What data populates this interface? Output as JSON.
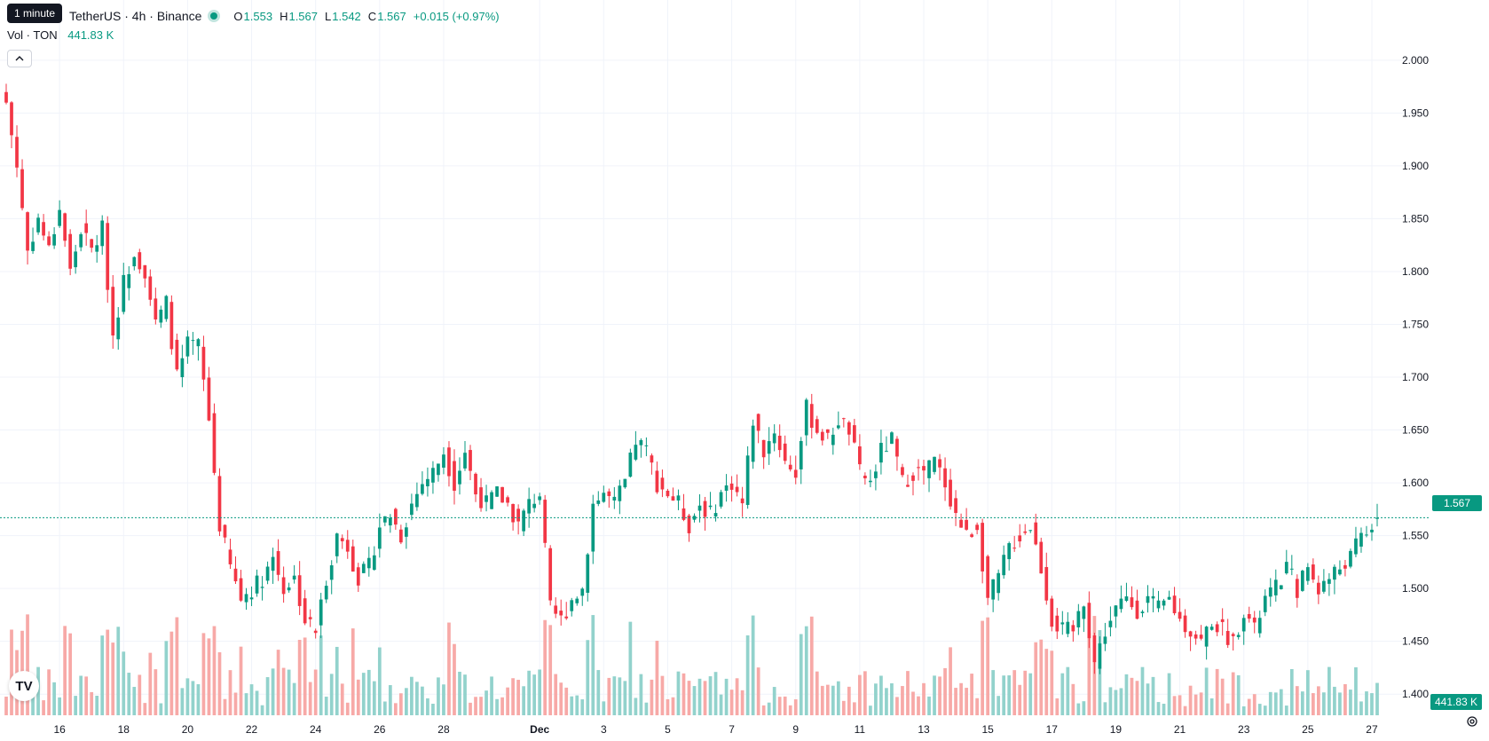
{
  "legend": {
    "tooltip": "1 minute",
    "symbol": "TetherUS · 4h · Binance",
    "open_key": "O",
    "open": "1.553",
    "high_key": "H",
    "high": "1.567",
    "low_key": "L",
    "low": "1.542",
    "close_key": "C",
    "close": "1.567",
    "change": "+0.015 (+0.97%)"
  },
  "volume_legend": {
    "label": "Vol · TON",
    "value": "441.83 K"
  },
  "price_axis_tags": {
    "last_price": "1.567",
    "last_volume": "441.83 K"
  },
  "icons": {
    "collapse": "chevron-up-icon",
    "logo": "tradingview-logo-icon",
    "settings": "settings-icon",
    "logo_text": "TV"
  },
  "colors": {
    "up": "#089981",
    "down": "#F23645",
    "up_vol": "#92d2cc",
    "down_vol": "#f7a9a7"
  },
  "chart_data": {
    "type": "candlestick",
    "interval": "4h",
    "ylim": [
      1.38,
      2.02
    ],
    "price_ticks": [
      "2.000",
      "1.950",
      "1.900",
      "1.850",
      "1.800",
      "1.750",
      "1.700",
      "1.650",
      "1.600",
      "1.550",
      "1.500",
      "1.450",
      "1.400"
    ],
    "x_ticks": [
      {
        "label": "16",
        "bar": 10
      },
      {
        "label": "18",
        "bar": 22
      },
      {
        "label": "20",
        "bar": 34
      },
      {
        "label": "22",
        "bar": 46
      },
      {
        "label": "24",
        "bar": 58
      },
      {
        "label": "26",
        "bar": 70
      },
      {
        "label": "28",
        "bar": 82
      },
      {
        "label": "Dec",
        "bar": 100
      },
      {
        "label": "3",
        "bar": 112
      },
      {
        "label": "5",
        "bar": 124
      },
      {
        "label": "7",
        "bar": 136
      },
      {
        "label": "9",
        "bar": 148
      },
      {
        "label": "11",
        "bar": 160
      },
      {
        "label": "13",
        "bar": 172
      },
      {
        "label": "15",
        "bar": 184
      },
      {
        "label": "17",
        "bar": 196
      },
      {
        "label": "19",
        "bar": 208
      },
      {
        "label": "21",
        "bar": 220
      },
      {
        "label": "23",
        "bar": 232
      },
      {
        "label": "25",
        "bar": 244
      },
      {
        "label": "27",
        "bar": 256
      }
    ],
    "total_bars": 258,
    "last_close": 1.567,
    "close_path": [
      [
        0,
        1.96
      ],
      [
        2,
        1.9
      ],
      [
        4,
        1.82
      ],
      [
        6,
        1.85
      ],
      [
        8,
        1.82
      ],
      [
        10,
        1.86
      ],
      [
        12,
        1.8
      ],
      [
        14,
        1.84
      ],
      [
        16,
        1.82
      ],
      [
        18,
        1.84
      ],
      [
        20,
        1.74
      ],
      [
        22,
        1.79
      ],
      [
        24,
        1.82
      ],
      [
        26,
        1.8
      ],
      [
        28,
        1.75
      ],
      [
        30,
        1.77
      ],
      [
        32,
        1.7
      ],
      [
        34,
        1.73
      ],
      [
        36,
        1.73
      ],
      [
        38,
        1.66
      ],
      [
        40,
        1.56
      ],
      [
        42,
        1.52
      ],
      [
        44,
        1.49
      ],
      [
        46,
        1.5
      ],
      [
        48,
        1.51
      ],
      [
        50,
        1.53
      ],
      [
        52,
        1.5
      ],
      [
        54,
        1.51
      ],
      [
        56,
        1.47
      ],
      [
        58,
        1.46
      ],
      [
        60,
        1.51
      ],
      [
        62,
        1.55
      ],
      [
        64,
        1.54
      ],
      [
        66,
        1.51
      ],
      [
        68,
        1.52
      ],
      [
        70,
        1.56
      ],
      [
        72,
        1.57
      ],
      [
        74,
        1.55
      ],
      [
        76,
        1.58
      ],
      [
        78,
        1.6
      ],
      [
        80,
        1.61
      ],
      [
        82,
        1.63
      ],
      [
        84,
        1.6
      ],
      [
        86,
        1.63
      ],
      [
        88,
        1.59
      ],
      [
        90,
        1.58
      ],
      [
        92,
        1.59
      ],
      [
        94,
        1.58
      ],
      [
        96,
        1.56
      ],
      [
        98,
        1.58
      ],
      [
        100,
        1.59
      ],
      [
        102,
        1.48
      ],
      [
        104,
        1.47
      ],
      [
        106,
        1.49
      ],
      [
        108,
        1.5
      ],
      [
        110,
        1.58
      ],
      [
        112,
        1.59
      ],
      [
        114,
        1.58
      ],
      [
        116,
        1.6
      ],
      [
        118,
        1.64
      ],
      [
        120,
        1.63
      ],
      [
        122,
        1.6
      ],
      [
        124,
        1.59
      ],
      [
        126,
        1.58
      ],
      [
        128,
        1.56
      ],
      [
        130,
        1.58
      ],
      [
        132,
        1.57
      ],
      [
        134,
        1.59
      ],
      [
        136,
        1.6
      ],
      [
        138,
        1.58
      ],
      [
        140,
        1.66
      ],
      [
        142,
        1.63
      ],
      [
        144,
        1.65
      ],
      [
        146,
        1.62
      ],
      [
        148,
        1.61
      ],
      [
        150,
        1.67
      ],
      [
        152,
        1.65
      ],
      [
        154,
        1.64
      ],
      [
        156,
        1.66
      ],
      [
        158,
        1.65
      ],
      [
        160,
        1.61
      ],
      [
        162,
        1.6
      ],
      [
        164,
        1.63
      ],
      [
        166,
        1.64
      ],
      [
        168,
        1.6
      ],
      [
        170,
        1.61
      ],
      [
        172,
        1.61
      ],
      [
        174,
        1.62
      ],
      [
        176,
        1.6
      ],
      [
        178,
        1.57
      ],
      [
        180,
        1.55
      ],
      [
        182,
        1.56
      ],
      [
        184,
        1.49
      ],
      [
        186,
        1.51
      ],
      [
        188,
        1.54
      ],
      [
        190,
        1.55
      ],
      [
        192,
        1.56
      ],
      [
        194,
        1.52
      ],
      [
        196,
        1.47
      ],
      [
        198,
        1.46
      ],
      [
        200,
        1.46
      ],
      [
        202,
        1.49
      ],
      [
        204,
        1.43
      ],
      [
        206,
        1.46
      ],
      [
        208,
        1.48
      ],
      [
        210,
        1.49
      ],
      [
        212,
        1.48
      ],
      [
        214,
        1.49
      ],
      [
        216,
        1.48
      ],
      [
        218,
        1.49
      ],
      [
        220,
        1.47
      ],
      [
        222,
        1.46
      ],
      [
        224,
        1.45
      ],
      [
        226,
        1.47
      ],
      [
        228,
        1.46
      ],
      [
        230,
        1.45
      ],
      [
        232,
        1.48
      ],
      [
        234,
        1.46
      ],
      [
        236,
        1.49
      ],
      [
        238,
        1.5
      ],
      [
        240,
        1.52
      ],
      [
        242,
        1.5
      ],
      [
        244,
        1.52
      ],
      [
        246,
        1.5
      ],
      [
        248,
        1.51
      ],
      [
        250,
        1.52
      ],
      [
        252,
        1.53
      ],
      [
        254,
        1.55
      ],
      [
        256,
        1.56
      ],
      [
        257,
        1.567
      ]
    ]
  }
}
